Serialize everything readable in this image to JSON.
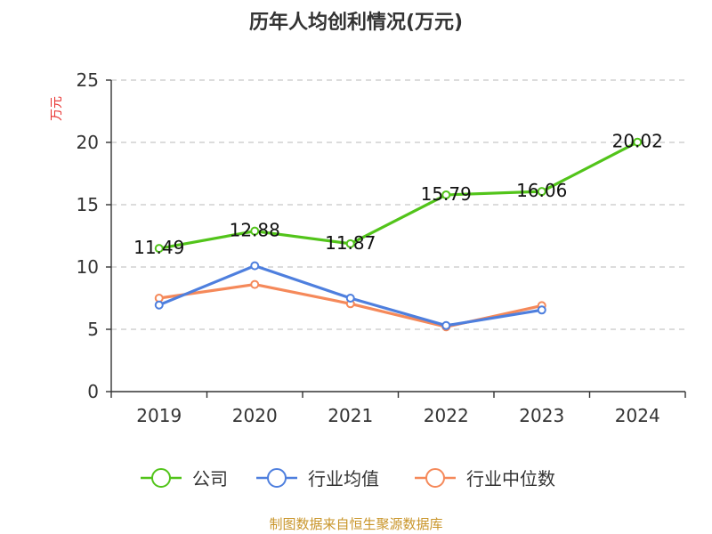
{
  "chart_data": {
    "type": "line",
    "title": "历年人均创利情况(万元)",
    "ylabel": "万元",
    "xlabel": "",
    "categories": [
      "2019",
      "2020",
      "2021",
      "2022",
      "2023",
      "2024"
    ],
    "ylim": [
      0,
      25
    ],
    "yticks": [
      0,
      5,
      10,
      15,
      20,
      25
    ],
    "grid": true,
    "legend_position": "bottom",
    "series": [
      {
        "name": "公司",
        "color": "#52c41a",
        "values": [
          11.49,
          12.88,
          11.87,
          15.79,
          16.06,
          20.02
        ],
        "labels": [
          "11.49",
          "12.88",
          "11.87",
          "15.79",
          "16.06",
          "20.02"
        ]
      },
      {
        "name": "行业均值",
        "color": "#4e7fde",
        "values": [
          6.95,
          10.1,
          7.5,
          5.3,
          6.55,
          null
        ],
        "labels": []
      },
      {
        "name": "行业中位数",
        "color": "#f5895a",
        "values": [
          7.5,
          8.6,
          7.05,
          5.2,
          6.9,
          null
        ],
        "labels": []
      }
    ]
  },
  "footer": {
    "source": "制图数据来自恒生聚源数据库"
  }
}
